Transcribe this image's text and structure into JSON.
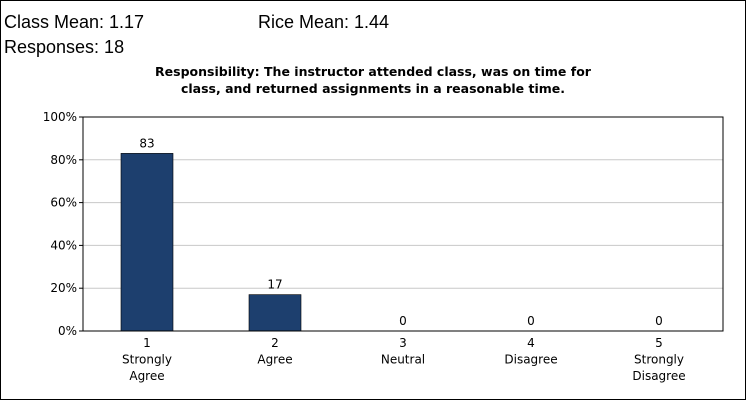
{
  "header": {
    "class_mean": "Class Mean: 1.17",
    "rice_mean": "Rice Mean: 1.44",
    "responses": "Responses: 18"
  },
  "chart_data": {
    "type": "bar",
    "title": [
      "Responsibility: The instructor attended class, was on time for",
      "class, and returned assignments in a reasonable time."
    ],
    "categories": [
      [
        "1",
        "Strongly",
        "Agree"
      ],
      [
        "2",
        "Agree"
      ],
      [
        "3",
        "Neutral"
      ],
      [
        "4",
        "Disagree"
      ],
      [
        "5",
        "Strongly",
        "Disagree"
      ]
    ],
    "values": [
      83,
      17,
      0,
      0,
      0
    ],
    "color": "#1d3f6e",
    "ylim": [
      0,
      100
    ],
    "yticks": [
      {
        "value": 0,
        "label": "0%"
      },
      {
        "value": 20,
        "label": "20%"
      },
      {
        "value": 40,
        "label": "40%"
      },
      {
        "value": 60,
        "label": "60%"
      },
      {
        "value": 80,
        "label": "80%"
      },
      {
        "value": 100,
        "label": "100%"
      }
    ],
    "grid": true
  }
}
